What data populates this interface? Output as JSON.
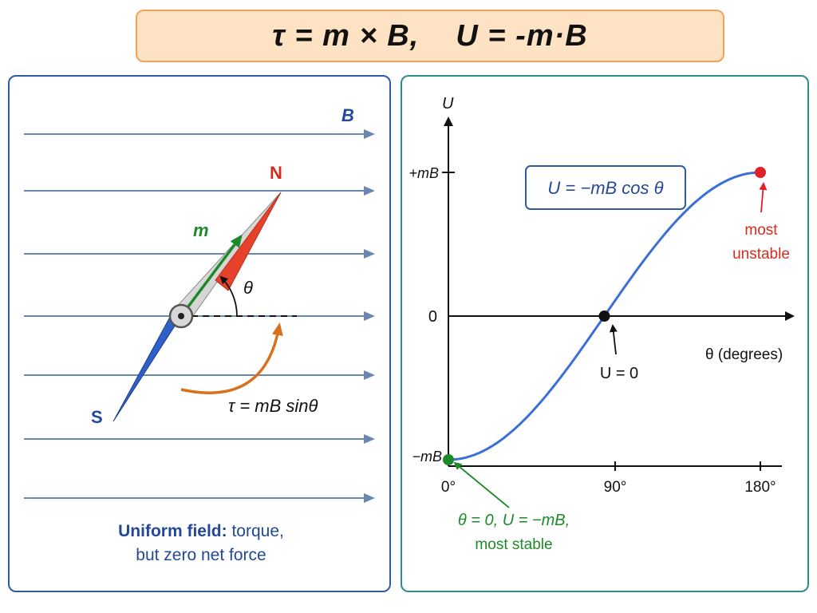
{
  "title": {
    "equation": "τ = m × B,    U = -m·B"
  },
  "left_panel": {
    "field_label": "B",
    "north_label": "N",
    "south_label": "S",
    "moment_label": "m",
    "angle_label": "θ",
    "torque_formula": "τ = mB sinθ",
    "caption_line1_bold": "Uniform field:",
    "caption_line1_rest": " torque,",
    "caption_line2": "but zero net force",
    "colors": {
      "field": "#6a86b3",
      "north": "#e5412b",
      "south": "#2f5fc8",
      "moment": "#1d8a2a",
      "torque": "#d9701e"
    }
  },
  "right_panel": {
    "formula_box": "U = −mB cos θ",
    "most_unstable_line1": "most",
    "most_unstable_line2": "unstable",
    "zero_crossing_label": "U = 0",
    "stable_line1": "θ = 0, U = −mB,",
    "stable_line2": "most stable",
    "chart_data": {
      "type": "line",
      "function": "U = −mB cos θ",
      "x": [
        0,
        15,
        30,
        45,
        60,
        75,
        90,
        105,
        120,
        135,
        150,
        165,
        180
      ],
      "y": [
        -1,
        -0.966,
        -0.866,
        -0.707,
        -0.5,
        -0.259,
        0,
        0.259,
        0.5,
        0.707,
        0.866,
        0.966,
        1
      ],
      "xlabel": "θ (degrees)",
      "ylabel": "U",
      "xticks": [
        "0°",
        "90°",
        "180°"
      ],
      "yticks": [
        "−mB",
        "0",
        "+mB"
      ],
      "xlim": [
        0,
        180
      ],
      "ylim": [
        -1,
        1
      ],
      "grid": false,
      "markers": [
        {
          "x": 0,
          "y": -1,
          "color": "#1d8a2a"
        },
        {
          "x": 90,
          "y": 0,
          "color": "#111111"
        },
        {
          "x": 180,
          "y": 1,
          "color": "#e0202a"
        }
      ],
      "line_color": "#3a6fd8"
    }
  }
}
